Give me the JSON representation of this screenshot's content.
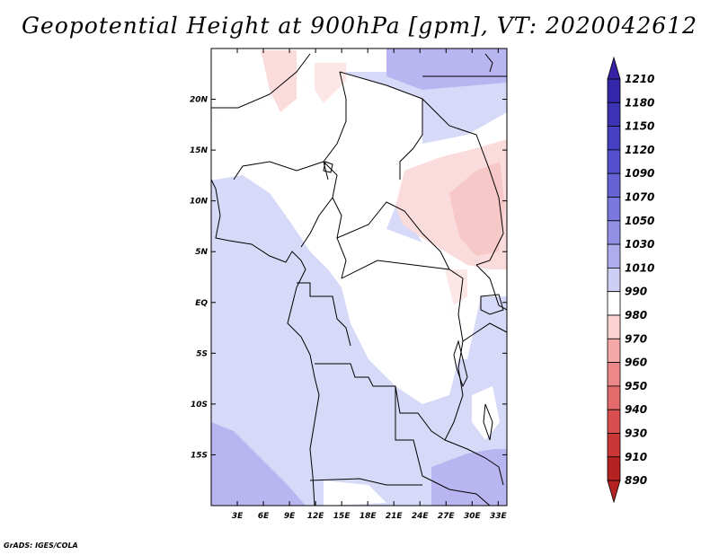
{
  "title": "Geopotential Height at 900hPa [gpm], VT: 2020042612",
  "credit": "GrADS: IGES/COLA",
  "map": {
    "lat_ticks": [
      "20N",
      "15N",
      "10N",
      "5N",
      "EQ",
      "5S",
      "10S",
      "15S"
    ],
    "lat_values": [
      20,
      15,
      10,
      5,
      0,
      -5,
      -10,
      -15
    ],
    "lon_ticks": [
      "3E",
      "6E",
      "9E",
      "12E",
      "15E",
      "18E",
      "21E",
      "24E",
      "27E",
      "30E",
      "33E"
    ],
    "lon_values": [
      3,
      6,
      9,
      12,
      15,
      18,
      21,
      24,
      27,
      30,
      33
    ],
    "extent": {
      "lon_min": 0,
      "lon_max": 34,
      "lat_min": -20,
      "lat_max": 25
    }
  },
  "colorbar": {
    "labels": [
      "1210",
      "1180",
      "1150",
      "1120",
      "1090",
      "1070",
      "1050",
      "1030",
      "1010",
      "990",
      "980",
      "970",
      "960",
      "950",
      "940",
      "930",
      "910",
      "890"
    ],
    "colors": [
      "#3a22a8",
      "#3427a9",
      "#3c33b4",
      "#4640c2",
      "#5450cd",
      "#6663d6",
      "#7a78de",
      "#9290e5",
      "#aeacec",
      "#cfcef4",
      "#ffffff",
      "#fbd3d3",
      "#f4a8a8",
      "#ec8888",
      "#e36b6b",
      "#d94e4e",
      "#c93636",
      "#b52222"
    ]
  },
  "colors": {
    "land_pale_blue": "#d7d9f8",
    "land_mid_blue": "#b8b5f0",
    "land_pale_red": "#fbdcdc",
    "border": "#000000"
  }
}
